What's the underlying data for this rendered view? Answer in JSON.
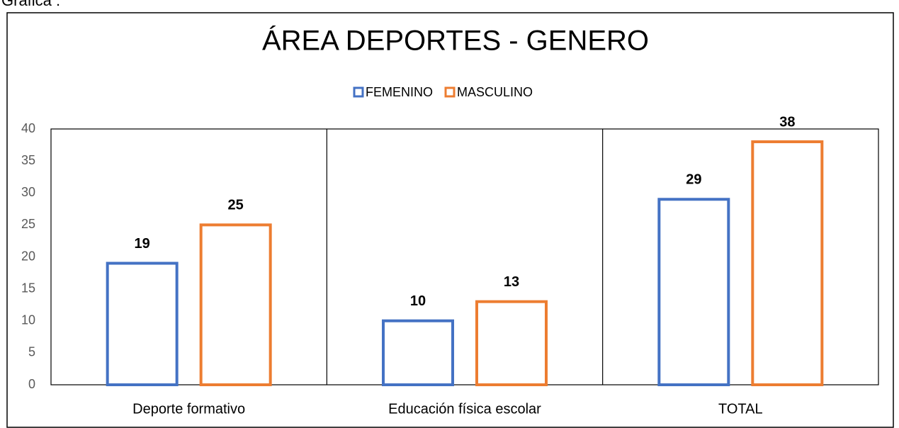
{
  "caption": "Gráfica :",
  "chart_data": {
    "type": "bar",
    "title": "ÁREA DEPORTES - GENERO",
    "categories": [
      "Deporte formativo",
      "Educación física escolar",
      "TOTAL"
    ],
    "series": [
      {
        "name": "FEMENINO",
        "color": "#4472c4",
        "values": [
          19,
          10,
          29
        ]
      },
      {
        "name": "MASCULINO",
        "color": "#ed7d31",
        "values": [
          25,
          13,
          38
        ]
      }
    ],
    "ylim": [
      0,
      40
    ],
    "yticks": [
      0,
      5,
      10,
      15,
      20,
      25,
      30,
      35,
      40
    ],
    "grid": false,
    "legend": "top"
  }
}
